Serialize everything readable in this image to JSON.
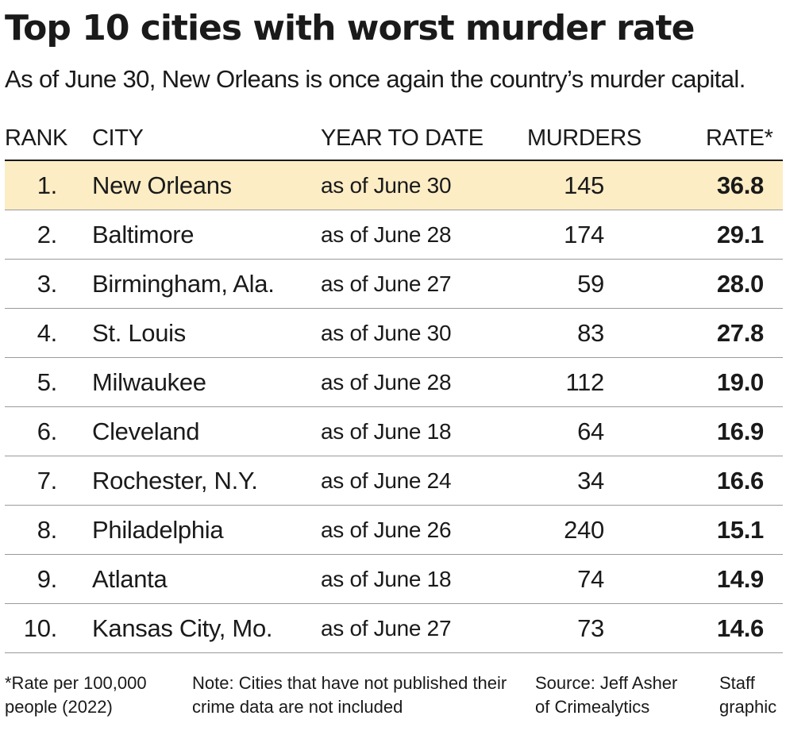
{
  "title": "Top 10 cities with worst murder rate",
  "subtitle": "As of June 30, New Orleans is once again the country’s murder capital.",
  "columns": {
    "rank": "RANK",
    "city": "CITY",
    "date": "YEAR TO DATE",
    "murders": "MURDERS",
    "rate": "RATE*"
  },
  "highlight_color": "#fcedc5",
  "chart_data": {
    "type": "table",
    "title": "Top 10 cities with worst murder rate",
    "columns": [
      "RANK",
      "CITY",
      "YEAR TO DATE",
      "MURDERS",
      "RATE*"
    ],
    "rows": [
      {
        "rank": "1.",
        "city": "New Orleans",
        "date": "as of June 30",
        "murders": "145",
        "rate": "36.8",
        "highlighted": true
      },
      {
        "rank": "2.",
        "city": "Baltimore",
        "date": "as of June 28",
        "murders": "174",
        "rate": "29.1"
      },
      {
        "rank": "3.",
        "city": "Birmingham, Ala.",
        "date": "as of June 27",
        "murders": "59",
        "rate": "28.0"
      },
      {
        "rank": "4.",
        "city": "St. Louis",
        "date": "as of June 30",
        "murders": "83",
        "rate": "27.8"
      },
      {
        "rank": "5.",
        "city": "Milwaukee",
        "date": "as of June 28",
        "murders": "112",
        "rate": "19.0"
      },
      {
        "rank": "6.",
        "city": "Cleveland",
        "date": "as of June 18",
        "murders": "64",
        "rate": "16.9"
      },
      {
        "rank": "7.",
        "city": "Rochester, N.Y.",
        "date": "as of June 24",
        "murders": "34",
        "rate": "16.6"
      },
      {
        "rank": "8.",
        "city": "Philadelphia",
        "date": "as of June 26",
        "murders": "240",
        "rate": "15.1"
      },
      {
        "rank": "9.",
        "city": "Atlanta",
        "date": "as of June 18",
        "murders": "74",
        "rate": "14.9"
      },
      {
        "rank": "10.",
        "city": "Kansas City, Mo.",
        "date": "as of June 27",
        "murders": "73",
        "rate": "14.6"
      }
    ]
  },
  "footer": {
    "rate_note": "*Rate per 100,000 people (2022)",
    "note": "Note: Cities that have not published their crime data are not included",
    "source": "Source: Jeff Asher of Crimealytics",
    "credit": "Staff graphic"
  }
}
